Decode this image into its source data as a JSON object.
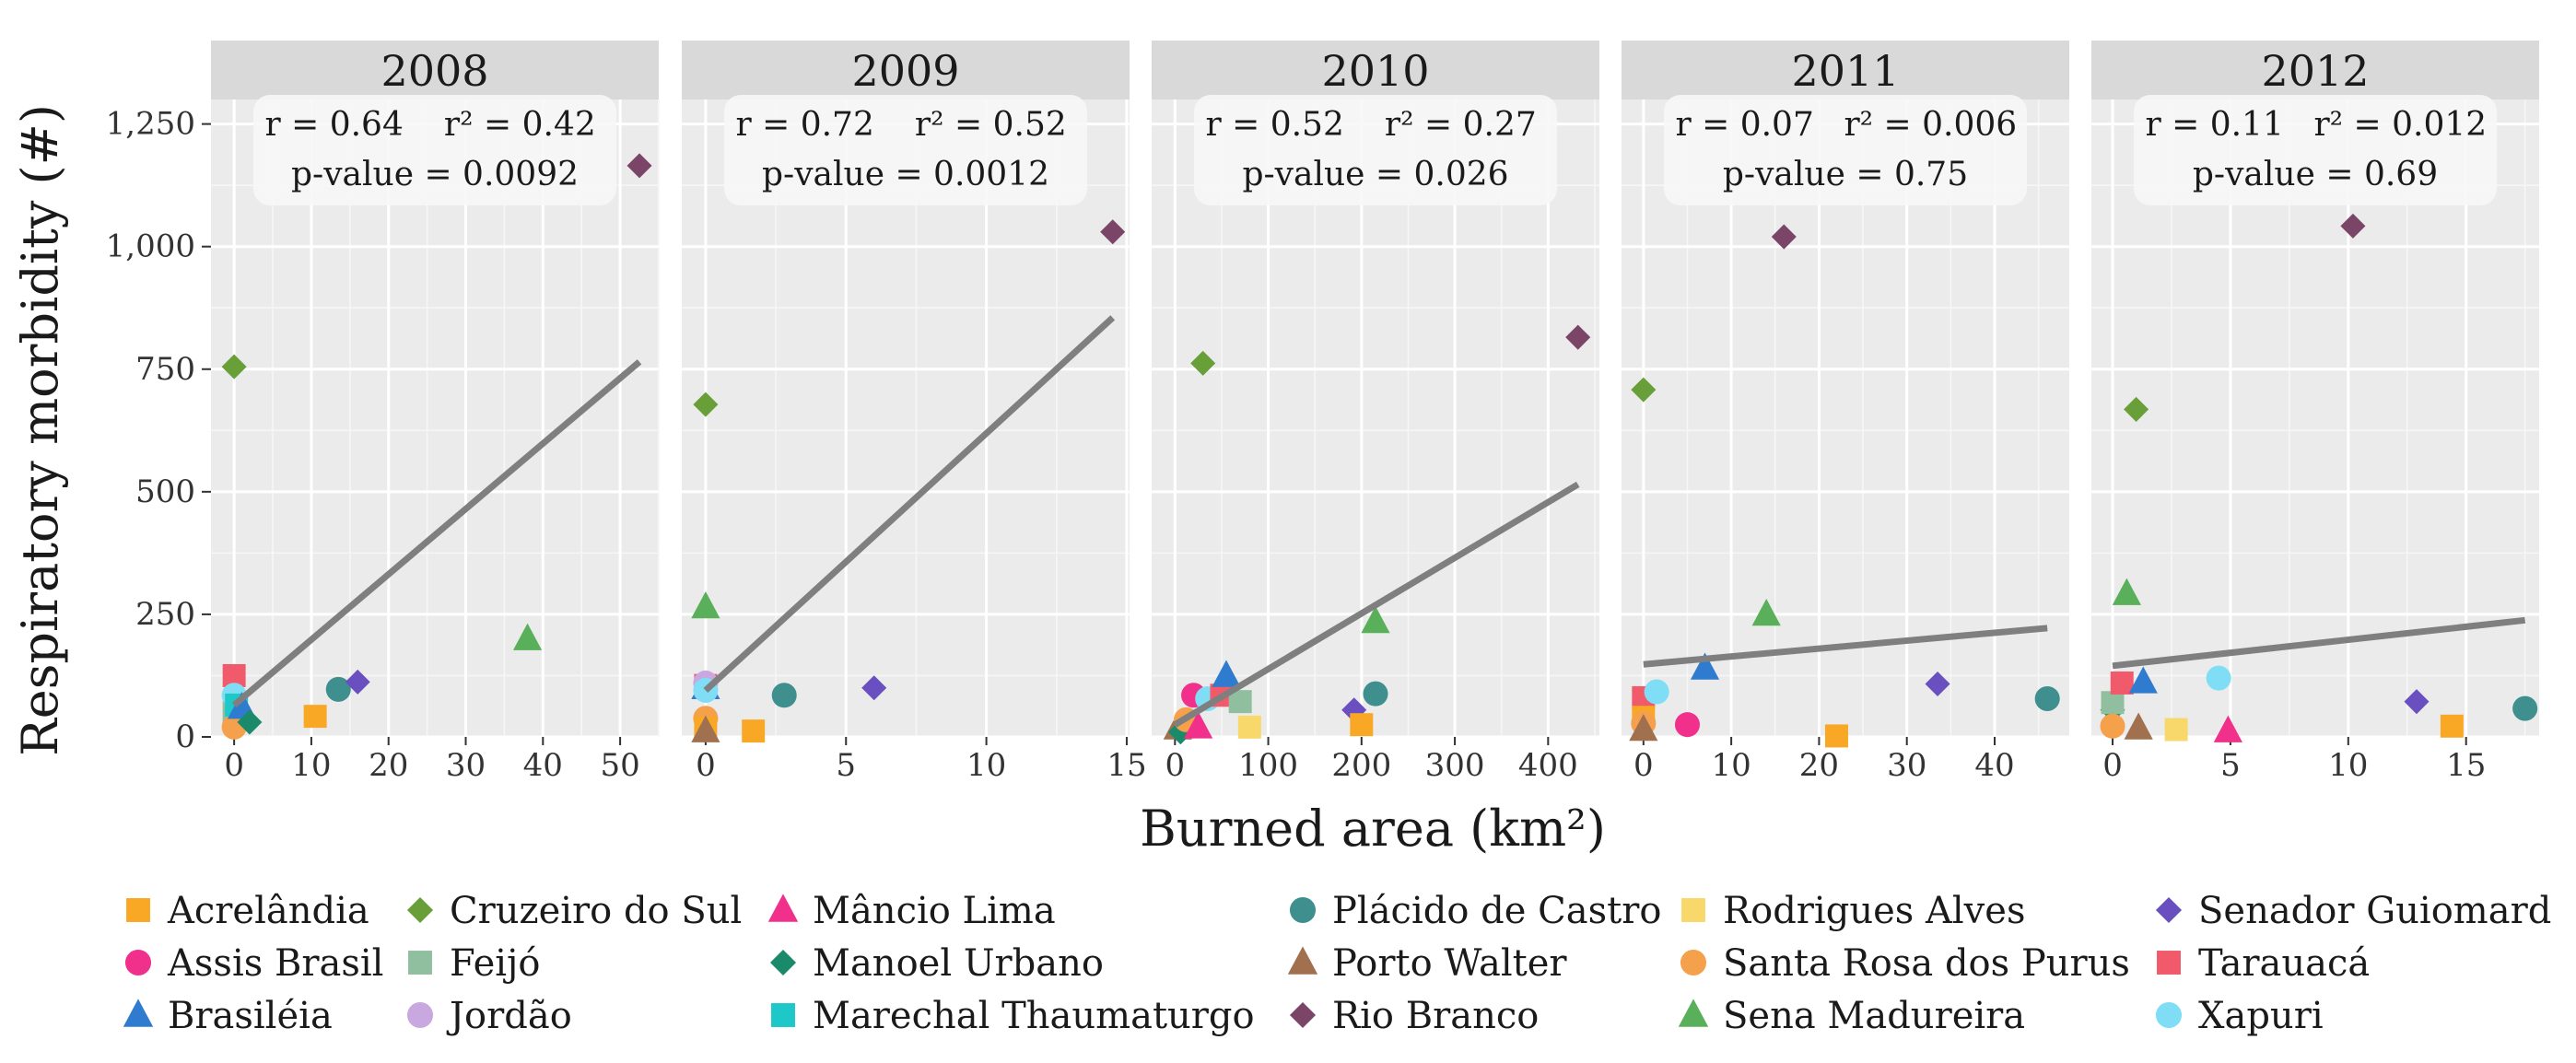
{
  "chart_data": {
    "type": "scatter",
    "ylabel": "Respiratory morbidity (#)",
    "xlabel": "Burned area (km²)",
    "ylim": [
      0,
      1300
    ],
    "yticks": [
      0,
      250,
      500,
      750,
      1000,
      1250
    ],
    "ytick_labels": [
      "0",
      "250",
      "500",
      "750",
      "1,000",
      "1,250"
    ],
    "legend_position": "bottom",
    "series_styles": [
      {
        "name": "Acrelândia",
        "color": "#F9A825",
        "shape": "square"
      },
      {
        "name": "Assis Brasil",
        "color": "#F0308A",
        "shape": "circle"
      },
      {
        "name": "Brasiléia",
        "color": "#2F7BCF",
        "shape": "triangle"
      },
      {
        "name": "Cruzeiro do Sul",
        "color": "#689F38",
        "shape": "diamond"
      },
      {
        "name": "Feijó",
        "color": "#8FBF9F",
        "shape": "square"
      },
      {
        "name": "Jordão",
        "color": "#C9A8E0",
        "shape": "circle"
      },
      {
        "name": "Mâncio Lima",
        "color": "#F0308A",
        "shape": "triangle"
      },
      {
        "name": "Manoel Urbano",
        "color": "#1B8A6B",
        "shape": "diamond"
      },
      {
        "name": "Marechal Thaumaturgo",
        "color": "#1FC8C8",
        "shape": "square"
      },
      {
        "name": "Plácido de Castro",
        "color": "#3F8F8F",
        "shape": "circle"
      },
      {
        "name": "Porto Walter",
        "color": "#A0704F",
        "shape": "triangle"
      },
      {
        "name": "Rio Branco",
        "color": "#7B4567",
        "shape": "diamond"
      },
      {
        "name": "Rodrigues Alves",
        "color": "#F8D86A",
        "shape": "square"
      },
      {
        "name": "Santa Rosa dos Purus",
        "color": "#F5A04A",
        "shape": "circle"
      },
      {
        "name": "Sena Madureira",
        "color": "#5AAF5A",
        "shape": "triangle"
      },
      {
        "name": "Senador Guiomard",
        "color": "#6A4FC0",
        "shape": "diamond"
      },
      {
        "name": "Tarauacá",
        "color": "#F05A6A",
        "shape": "square"
      },
      {
        "name": "Xapuri",
        "color": "#7FDDF5",
        "shape": "circle"
      }
    ],
    "legend_columns": [
      [
        "Acrelândia",
        "Assis Brasil",
        "Brasiléia"
      ],
      [
        "Cruzeiro do Sul",
        "Feijó",
        "Jordão"
      ],
      [
        "Mâncio Lima",
        "Manoel Urbano",
        "Marechal Thaumaturgo"
      ],
      [
        "Plácido de Castro",
        "Porto Walter",
        "Rio Branco"
      ],
      [
        "Rodrigues Alves",
        "Santa Rosa dos Purus",
        "Sena Madureira"
      ],
      [
        "Senador Guiomard",
        "Tarauacá",
        "Xapuri"
      ]
    ],
    "panels": [
      {
        "title": "2008",
        "r_text": "r = 0.64",
        "r2_text": "r² = 0.42",
        "p_text": "p-value = 0.0092",
        "xlim": [
          -3,
          55
        ],
        "xticks": [
          0,
          10,
          20,
          30,
          40,
          50
        ],
        "xtick_labels": [
          "0",
          "10",
          "20",
          "30",
          "40",
          "50"
        ],
        "fit": {
          "x": [
            0,
            52.5
          ],
          "y": [
            65,
            765
          ]
        },
        "points": [
          {
            "name": "Tarauacá",
            "x": 0,
            "y": 125
          },
          {
            "name": "Cruzeiro do Sul",
            "x": 0,
            "y": 755
          },
          {
            "name": "Feijó",
            "x": 0,
            "y": 50
          },
          {
            "name": "Xapuri",
            "x": 0,
            "y": 85
          },
          {
            "name": "Santa Rosa dos Purus",
            "x": 0,
            "y": 20
          },
          {
            "name": "Marechal Thaumaturgo",
            "x": 0.3,
            "y": 65
          },
          {
            "name": "Brasiléia",
            "x": 1,
            "y": 60
          },
          {
            "name": "Manoel Urbano",
            "x": 2,
            "y": 30
          },
          {
            "name": "Acrelândia",
            "x": 10.5,
            "y": 42
          },
          {
            "name": "Plácido de Castro",
            "x": 13.5,
            "y": 97
          },
          {
            "name": "Senador Guiomard",
            "x": 16,
            "y": 112
          },
          {
            "name": "Sena Madureira",
            "x": 38,
            "y": 200
          },
          {
            "name": "Rio Branco",
            "x": 52.5,
            "y": 1165
          }
        ]
      },
      {
        "title": "2009",
        "r_text": "r = 0.72",
        "r2_text": "r² = 0.52",
        "p_text": "p-value = 0.0012",
        "xlim": [
          -0.85,
          15.1
        ],
        "xticks": [
          0,
          5,
          10,
          15
        ],
        "xtick_labels": [
          "0",
          "5",
          "10",
          "15"
        ],
        "fit": {
          "x": [
            0,
            14.5
          ],
          "y": [
            95,
            855
          ]
        },
        "points": [
          {
            "name": "Cruzeiro do Sul",
            "x": 0,
            "y": 678
          },
          {
            "name": "Sena Madureira",
            "x": 0,
            "y": 265
          },
          {
            "name": "Tarauacá",
            "x": 0,
            "y": 105
          },
          {
            "name": "Brasiléia",
            "x": 0,
            "y": 100
          },
          {
            "name": "Jordão",
            "x": 0,
            "y": 110
          },
          {
            "name": "Xapuri",
            "x": 0,
            "y": 95
          },
          {
            "name": "Santa Rosa dos Purus",
            "x": 0,
            "y": 38
          },
          {
            "name": "Acrelândia",
            "x": 0,
            "y": 18
          },
          {
            "name": "Porto Walter",
            "x": 0,
            "y": 12
          },
          {
            "name": "Acrelândia",
            "x": 1.7,
            "y": 12
          },
          {
            "name": "Plácido de Castro",
            "x": 2.8,
            "y": 85
          },
          {
            "name": "Senador Guiomard",
            "x": 6,
            "y": 100
          },
          {
            "name": "Rio Branco",
            "x": 14.5,
            "y": 1030
          }
        ]
      },
      {
        "title": "2010",
        "r_text": "r = 0.52",
        "r2_text": "r² = 0.27",
        "p_text": "p-value = 0.026",
        "xlim": [
          -25,
          455
        ],
        "xticks": [
          0,
          100,
          200,
          300,
          400
        ],
        "xtick_labels": [
          "0",
          "100",
          "200",
          "300",
          "400"
        ],
        "fit": {
          "x": [
            0,
            432
          ],
          "y": [
            25,
            515
          ]
        },
        "points": [
          {
            "name": "Porto Walter",
            "x": 3,
            "y": 18
          },
          {
            "name": "Manoel Urbano",
            "x": 6,
            "y": 10
          },
          {
            "name": "Santa Rosa dos Purus",
            "x": 12,
            "y": 35
          },
          {
            "name": "Assis Brasil",
            "x": 20,
            "y": 85
          },
          {
            "name": "Mâncio Lima",
            "x": 25,
            "y": 20
          },
          {
            "name": "Cruzeiro do Sul",
            "x": 30,
            "y": 762
          },
          {
            "name": "Xapuri",
            "x": 35,
            "y": 78
          },
          {
            "name": "Tarauacá",
            "x": 50,
            "y": 85
          },
          {
            "name": "Brasiléia",
            "x": 55,
            "y": 125
          },
          {
            "name": "Feijó",
            "x": 70,
            "y": 72
          },
          {
            "name": "Rodrigues Alves",
            "x": 80,
            "y": 20
          },
          {
            "name": "Senador Guiomard",
            "x": 192,
            "y": 55
          },
          {
            "name": "Acrelândia",
            "x": 200,
            "y": 25
          },
          {
            "name": "Plácido de Castro",
            "x": 215,
            "y": 88
          },
          {
            "name": "Sena Madureira",
            "x": 215,
            "y": 235
          },
          {
            "name": "Rio Branco",
            "x": 432,
            "y": 815
          }
        ]
      },
      {
        "title": "2011",
        "r_text": "r = 0.07",
        "r2_text": "r² = 0.006",
        "p_text": "p-value = 0.75",
        "xlim": [
          -2.5,
          48.5
        ],
        "xticks": [
          0,
          10,
          20,
          30,
          40
        ],
        "xtick_labels": [
          "0",
          "10",
          "20",
          "30",
          "40"
        ],
        "fit": {
          "x": [
            0,
            46
          ],
          "y": [
            148,
            222
          ]
        },
        "points": [
          {
            "name": "Cruzeiro do Sul",
            "x": 0,
            "y": 708
          },
          {
            "name": "Tarauacá",
            "x": 0,
            "y": 80
          },
          {
            "name": "Acrelândia",
            "x": 0,
            "y": 40
          },
          {
            "name": "Santa Rosa dos Purus",
            "x": 0,
            "y": 28
          },
          {
            "name": "Porto Walter",
            "x": 0,
            "y": 15
          },
          {
            "name": "Xapuri",
            "x": 1.5,
            "y": 92
          },
          {
            "name": "Assis Brasil",
            "x": 5,
            "y": 25
          },
          {
            "name": "Brasiléia",
            "x": 7,
            "y": 140
          },
          {
            "name": "Sena Madureira",
            "x": 14,
            "y": 250
          },
          {
            "name": "Rio Branco",
            "x": 16,
            "y": 1020
          },
          {
            "name": "Acrelândia",
            "x": 22,
            "y": 2
          },
          {
            "name": "Senador Guiomard",
            "x": 33.5,
            "y": 108
          },
          {
            "name": "Plácido de Castro",
            "x": 46,
            "y": 78
          }
        ]
      },
      {
        "title": "2012",
        "r_text": "r = 0.11",
        "r2_text": "r² = 0.012",
        "p_text": "p-value = 0.69",
        "xlim": [
          -0.9,
          18.1
        ],
        "xticks": [
          0,
          5,
          10,
          15
        ],
        "xtick_labels": [
          "0",
          "5",
          "10",
          "15"
        ],
        "fit": {
          "x": [
            0,
            17.5
          ],
          "y": [
            145,
            238
          ]
        },
        "points": [
          {
            "name": "Manoel Urbano",
            "x": 0,
            "y": 55
          },
          {
            "name": "Feijó",
            "x": 0,
            "y": 70
          },
          {
            "name": "Santa Rosa dos Purus",
            "x": 0,
            "y": 22
          },
          {
            "name": "Tarauacá",
            "x": 0.4,
            "y": 110
          },
          {
            "name": "Sena Madureira",
            "x": 0.6,
            "y": 292
          },
          {
            "name": "Cruzeiro do Sul",
            "x": 1,
            "y": 668
          },
          {
            "name": "Porto Walter",
            "x": 1.1,
            "y": 18
          },
          {
            "name": "Brasiléia",
            "x": 1.3,
            "y": 112
          },
          {
            "name": "Rodrigues Alves",
            "x": 2.7,
            "y": 15
          },
          {
            "name": "Xapuri",
            "x": 4.5,
            "y": 120
          },
          {
            "name": "Mâncio Lima",
            "x": 4.9,
            "y": 12
          },
          {
            "name": "Rio Branco",
            "x": 10.2,
            "y": 1042
          },
          {
            "name": "Senador Guiomard",
            "x": 12.9,
            "y": 72
          },
          {
            "name": "Acrelândia",
            "x": 14.4,
            "y": 22
          },
          {
            "name": "Plácido de Castro",
            "x": 17.5,
            "y": 58
          }
        ]
      }
    ]
  }
}
